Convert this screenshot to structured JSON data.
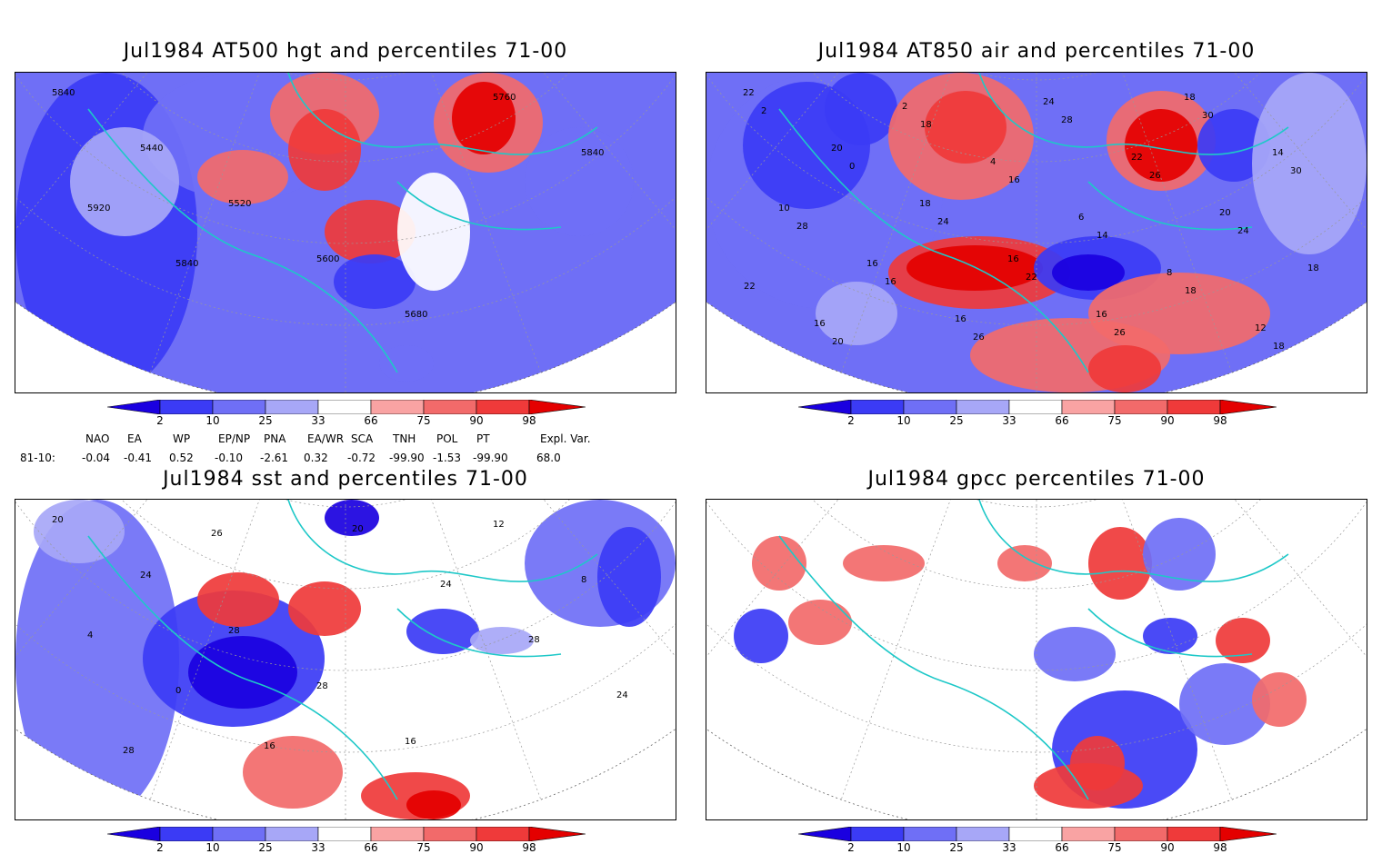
{
  "panels": [
    {
      "title": "Jul1984 AT500 hgt and percentiles 71-00",
      "contour_labels": [
        "5840",
        "5440",
        "5520",
        "5600",
        "5680",
        "5760",
        "5840",
        "5920",
        "5840"
      ]
    },
    {
      "title": "Jul1984 AT850 air and percentiles 71-00",
      "contour_labels": [
        "22",
        "20",
        "18",
        "16",
        "16",
        "18",
        "14",
        "10",
        "16",
        "16",
        "24",
        "22",
        "20",
        "18",
        "16",
        "2",
        "4",
        "6",
        "8",
        "12",
        "2",
        "0",
        "24",
        "22",
        "26",
        "30",
        "30",
        "28",
        "16",
        "26",
        "28",
        "26",
        "24",
        "22",
        "20",
        "18",
        "16",
        "14",
        "18",
        "18"
      ]
    },
    {
      "title": "Jul1984 sst and percentiles 71-00",
      "contour_labels": [
        "20",
        "24",
        "28",
        "28",
        "16",
        "12",
        "8",
        "4",
        "0",
        "16",
        "20",
        "24",
        "28",
        "24",
        "28",
        "26"
      ]
    },
    {
      "title": "Jul1984 gpcc percentiles 71-00",
      "contour_labels": []
    }
  ],
  "colorbar": {
    "labels": [
      "2",
      "10",
      "25",
      "33",
      "66",
      "75",
      "90",
      "98"
    ],
    "colors": [
      "#1a00e0",
      "#3b3bf5",
      "#6f6ff6",
      "#a7a7f7",
      "#ffffff",
      "#f9a3a3",
      "#f26a6a",
      "#ef3a3a",
      "#e40000"
    ]
  },
  "indices": {
    "headers": [
      "NAO",
      "EA",
      "WP",
      "EP/NP",
      "PNA",
      "EA/WR",
      "SCA",
      "TNH",
      "POL",
      "PT",
      "Expl. Var."
    ],
    "row_label": "81-10:",
    "values": [
      "-0.04",
      "-0.41",
      "0.52",
      "-0.10",
      "-2.61",
      "0.32",
      "-0.72",
      "-99.90",
      "-1.53",
      "-99.90",
      "68.0"
    ]
  }
}
